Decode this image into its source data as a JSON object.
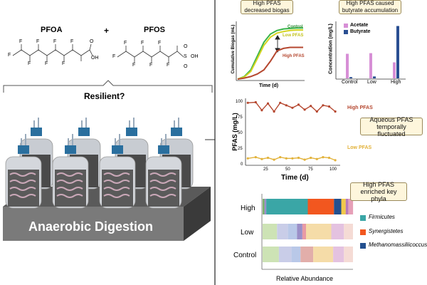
{
  "left": {
    "compound_a": "PFOA",
    "plus": "+",
    "compound_b": "PFOS",
    "question": "Resilient?",
    "base_label": "Anaerobic Digestion",
    "pfoa_atoms": {
      "f": "F",
      "oh": "OH",
      "o": "O"
    },
    "pfos_atoms": {
      "f": "F",
      "oh": "OH",
      "s": "S",
      "o": "O"
    }
  },
  "biogas": {
    "title": "High PFAS decreased biogas",
    "ylabel": "Cumulative Biogas (mL)",
    "xlabel": "Time (d)",
    "series_labels": {
      "control": "Control",
      "low": "Low PFAS",
      "high": "High PFAS"
    },
    "colors": {
      "control": "#39b54a",
      "low": "#d4d422",
      "high": "#b5472f"
    }
  },
  "butyrate": {
    "title": "High PFAS caused butyrate accumulation",
    "ylabel": "Concentration (mg/L)",
    "legend": [
      {
        "name": "Acetate",
        "color": "#d78fd6"
      },
      {
        "name": "Butyrate",
        "color": "#2a4f92"
      }
    ],
    "categories": [
      "Control",
      "Low",
      "High"
    ]
  },
  "aqueous": {
    "ylabel": "PFAS (mg/L)",
    "xlabel": "Time (d)",
    "high_label": "High PFAS",
    "low_label": "Low PFAS",
    "note": "Aqueous PFAS temporally fluctuated",
    "yticks": [
      "100",
      "75",
      "50",
      "25",
      "0"
    ],
    "xticks": [
      "25",
      "50",
      "75",
      "100"
    ]
  },
  "phyla": {
    "title": "High PFAS enriched key phyla",
    "rows": [
      "High",
      "Low",
      "Control"
    ],
    "xlabel": "Relative Abundance",
    "legend": [
      {
        "name": "Firmicutes",
        "color": "#3aa6a6"
      },
      {
        "name": "Synergistetes",
        "color": "#f2571f"
      },
      {
        "name": "Methanomassiliicoccus",
        "color": "#23508f"
      }
    ]
  },
  "chart_data": [
    {
      "type": "line",
      "title": "High PFAS decreased biogas",
      "xlabel": "Time (d)",
      "ylabel": "Cumulative Biogas (mL)",
      "x": [
        0,
        10,
        20,
        30,
        40,
        50,
        60,
        70,
        80,
        90,
        100
      ],
      "series": [
        {
          "name": "Control",
          "values": [
            0,
            5,
            18,
            45,
            72,
            88,
            95,
            98,
            99,
            100,
            100
          ]
        },
        {
          "name": "Low PFAS",
          "values": [
            0,
            4,
            15,
            40,
            66,
            82,
            90,
            93,
            95,
            96,
            96
          ]
        },
        {
          "name": "High PFAS",
          "values": [
            0,
            2,
            5,
            10,
            18,
            35,
            55,
            60,
            62,
            62,
            62
          ]
        }
      ],
      "ylim": [
        0,
        110
      ]
    },
    {
      "type": "bar",
      "title": "High PFAS caused butyrate accumulation",
      "categories": [
        "Control",
        "Low",
        "High"
      ],
      "series": [
        {
          "name": "Acetate",
          "values": [
            11.5,
            11.8,
            7.5
          ]
        },
        {
          "name": "Butyrate",
          "values": [
            0.6,
            0.9,
            24.5
          ]
        }
      ],
      "ylabel": "Concentration (mg/L)",
      "ylim": [
        0,
        26
      ]
    },
    {
      "type": "line",
      "title": "Aqueous PFAS temporally fluctuated",
      "xlabel": "Time (d)",
      "ylabel": "PFAS (mg/L)",
      "x": [
        1,
        10,
        17,
        24,
        31,
        38,
        45,
        52,
        59,
        66,
        73,
        80,
        87,
        94,
        101
      ],
      "series": [
        {
          "name": "High PFAS",
          "values": [
            100,
            101,
            88,
            99,
            86,
            100,
            96,
            92,
            97,
            89,
            95,
            86,
            96,
            94,
            86
          ]
        },
        {
          "name": "Low PFAS",
          "values": [
            10,
            12,
            9,
            11,
            8,
            12,
            10,
            10,
            11,
            8,
            11,
            9,
            12,
            11,
            7
          ]
        }
      ],
      "ylim": [
        0,
        105
      ],
      "xlim": [
        0,
        105
      ]
    },
    {
      "type": "bar",
      "title": "High PFAS enriched key phyla",
      "orientation": "horizontal-stacked",
      "categories": [
        "High",
        "Low",
        "Control"
      ],
      "xlabel": "Relative Abundance",
      "series": [
        {
          "name": "High",
          "segments": [
            {
              "color": "#7db36a",
              "value": 2
            },
            {
              "color": "#9b8fc9",
              "value": 2
            },
            {
              "color": "#3aa6a6",
              "value": 46
            },
            {
              "color": "#f2571f",
              "value": 29
            },
            {
              "color": "#23508f",
              "value": 8
            },
            {
              "color": "#f2c94c",
              "value": 5
            },
            {
              "color": "#b87ab8",
              "value": 3
            },
            {
              "color": "#e6a0b8",
              "value": 5
            }
          ]
        },
        {
          "name": "Low",
          "segments": [
            {
              "color": "#cde3b5",
              "value": 16
            },
            {
              "color": "#c9cde8",
              "value": 12
            },
            {
              "color": "#b9c8e8",
              "value": 10
            },
            {
              "color": "#9a8fc8",
              "value": 6
            },
            {
              "color": "#e89aa5",
              "value": 4
            },
            {
              "color": "#f5dca8",
              "value": 28
            },
            {
              "color": "#e4c2e0",
              "value": 14
            },
            {
              "color": "#f5dbd5",
              "value": 10
            }
          ]
        },
        {
          "name": "Control",
          "segments": [
            {
              "color": "#cde3b5",
              "value": 18
            },
            {
              "color": "#c9cde8",
              "value": 14
            },
            {
              "color": "#b9c8e8",
              "value": 10
            },
            {
              "color": "#e2aeaa",
              "value": 14
            },
            {
              "color": "#f5dca8",
              "value": 22
            },
            {
              "color": "#e4c2e0",
              "value": 12
            },
            {
              "color": "#f5dbd5",
              "value": 10
            }
          ]
        }
      ]
    }
  ]
}
